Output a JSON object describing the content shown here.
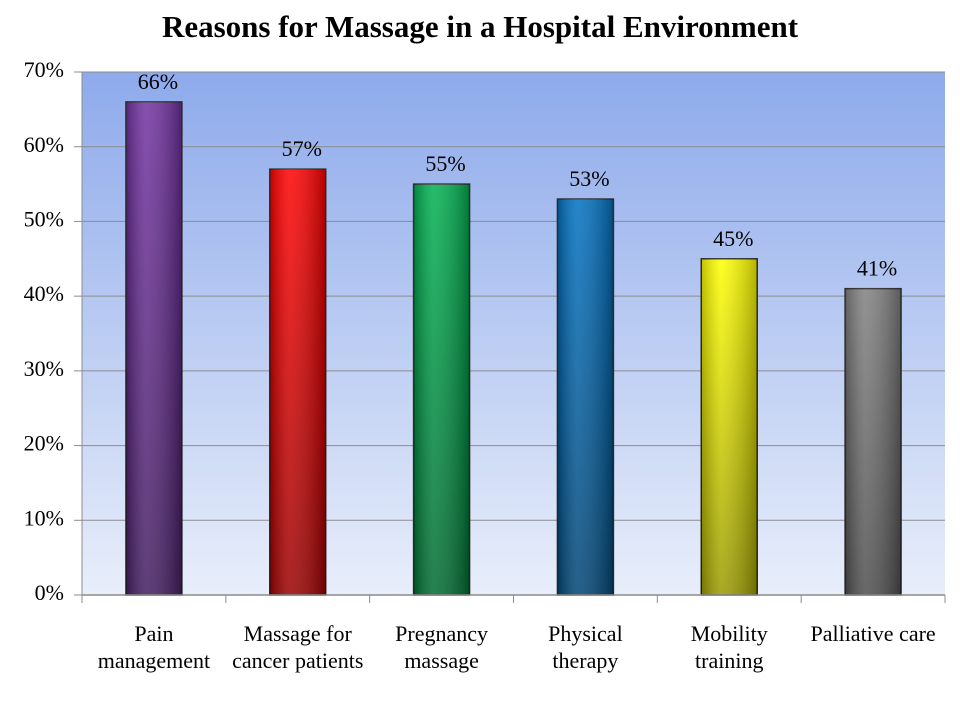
{
  "chart_data": {
    "type": "bar",
    "title": "Reasons for Massage in a Hospital Environment",
    "categories": [
      "Pain management",
      "Massage for cancer patients",
      "Pregnancy massage",
      "Physical therapy",
      "Mobility training",
      "Palliative care"
    ],
    "values": [
      66,
      57,
      55,
      53,
      45,
      41
    ],
    "value_labels": [
      "66%",
      "57%",
      "55%",
      "53%",
      "45%",
      "41%"
    ],
    "colors": [
      "#7030a0",
      "#ff0000",
      "#00b050",
      "#0070c0",
      "#ffff00",
      "#808080"
    ],
    "ylim": [
      0,
      70
    ],
    "yticks": [
      {
        "value": 0,
        "label": "0%"
      },
      {
        "value": 10,
        "label": "10%"
      },
      {
        "value": 20,
        "label": "20%"
      },
      {
        "value": 30,
        "label": "30%"
      },
      {
        "value": 40,
        "label": "40%"
      },
      {
        "value": 50,
        "label": "50%"
      },
      {
        "value": 60,
        "label": "60%"
      },
      {
        "value": 70,
        "label": "70%"
      }
    ],
    "grid": true
  }
}
